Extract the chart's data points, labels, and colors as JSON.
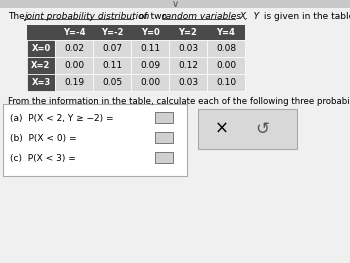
{
  "col_headers": [
    "Y=-4",
    "Y=-2",
    "Y=0",
    "Y=2",
    "Y=4"
  ],
  "row_headers": [
    "X=0",
    "X=2",
    "X=3"
  ],
  "table_data": [
    [
      0.02,
      0.07,
      0.11,
      0.03,
      0.08
    ],
    [
      0.0,
      0.11,
      0.09,
      0.12,
      0.0
    ],
    [
      0.19,
      0.05,
      0.0,
      0.03,
      0.1
    ]
  ],
  "header_bg": "#4a4a4a",
  "row_header_bg": "#4a4a4a",
  "cell_bg": "#d9d9d9",
  "from_text": "From the information in the table, calculate each of the following three probabilities.",
  "prob_a": "(a)  P(X < 2, Y ≥ −2) = ",
  "prob_b": "(b)  P(X < 0) = ",
  "prob_c": "(c)  P(X < 3) = ",
  "answer_box_bg": "#d0d0d0",
  "x_symbol": "×",
  "undo_symbol": "↺",
  "bg_color": "#f0f0f0",
  "top_bar_color": "#c8c8c8"
}
